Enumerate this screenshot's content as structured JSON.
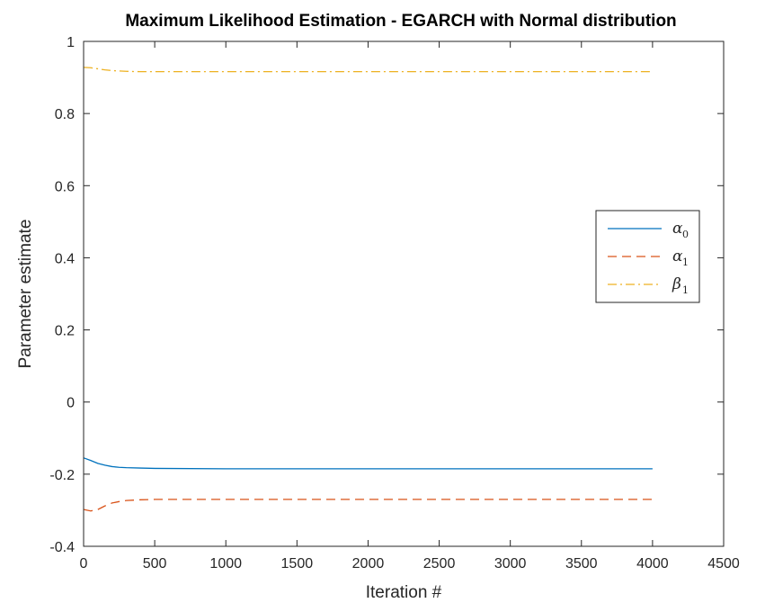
{
  "chart_data": {
    "type": "line",
    "title": "Maximum Likelihood Estimation - EGARCH with Normal distribution",
    "xlabel": "Iteration #",
    "ylabel": "Parameter estimate",
    "xlim": [
      0,
      4500
    ],
    "ylim": [
      -0.4,
      1
    ],
    "xticks": [
      0,
      500,
      1000,
      1500,
      2000,
      2500,
      3000,
      3500,
      4000,
      4500
    ],
    "yticks": [
      -0.4,
      -0.2,
      0,
      0.2,
      0.4,
      0.6,
      0.8,
      1
    ],
    "ytick_labels": [
      "-0.4",
      "-0.2",
      "0",
      "0.2",
      "0.4",
      "0.6",
      "0.8",
      "1"
    ],
    "grid": false,
    "legend_position": "right",
    "series": [
      {
        "name": "α0",
        "symbol": "α",
        "subscript": "0",
        "color": "#0072BD",
        "dash": "solid",
        "x": [
          1,
          50,
          100,
          150,
          200,
          250,
          300,
          400,
          500,
          1000,
          2000,
          3000,
          4000
        ],
        "y": [
          -0.155,
          -0.162,
          -0.17,
          -0.175,
          -0.179,
          -0.181,
          -0.182,
          -0.183,
          -0.184,
          -0.185,
          -0.185,
          -0.185,
          -0.185
        ]
      },
      {
        "name": "α1",
        "symbol": "α",
        "subscript": "1",
        "color": "#D95319",
        "dash": "dashed",
        "x": [
          1,
          50,
          100,
          150,
          200,
          250,
          300,
          400,
          500,
          1000,
          2000,
          3000,
          4000
        ],
        "y": [
          -0.298,
          -0.302,
          -0.298,
          -0.288,
          -0.28,
          -0.276,
          -0.273,
          -0.271,
          -0.27,
          -0.27,
          -0.27,
          -0.27,
          -0.27
        ]
      },
      {
        "name": "β1",
        "symbol": "β",
        "subscript": "1",
        "color": "#EDB120",
        "dash": "dashdot",
        "x": [
          1,
          50,
          100,
          150,
          200,
          250,
          300,
          400,
          500,
          1000,
          2000,
          3000,
          4000
        ],
        "y": [
          0.928,
          0.927,
          0.924,
          0.921,
          0.919,
          0.918,
          0.917,
          0.916,
          0.916,
          0.916,
          0.916,
          0.916,
          0.916
        ]
      }
    ]
  }
}
